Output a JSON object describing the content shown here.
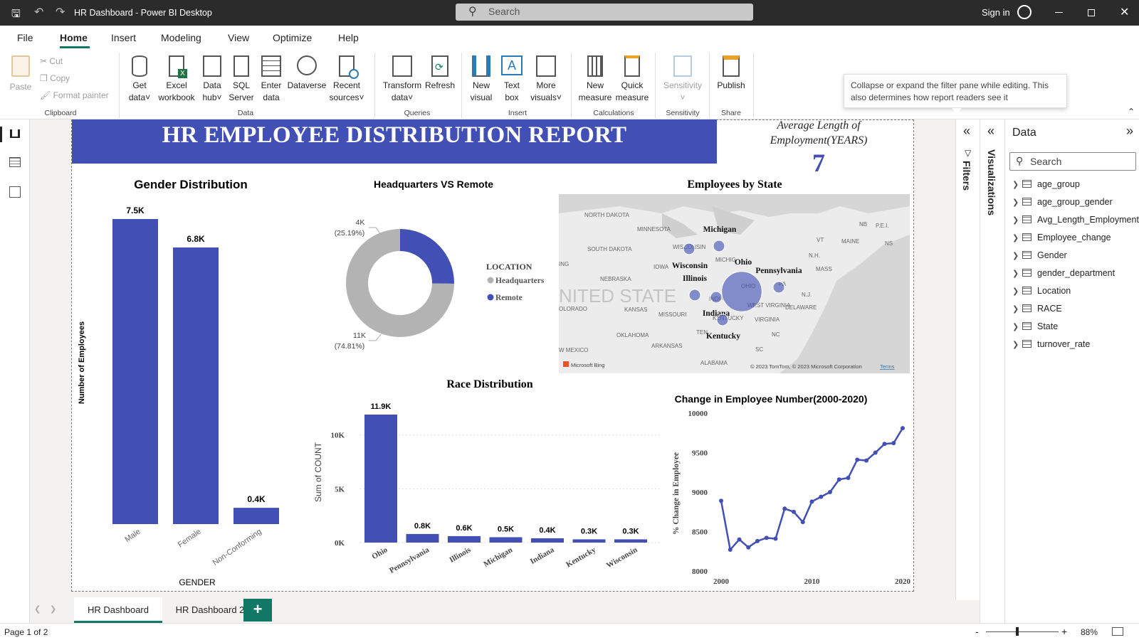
{
  "window": {
    "title": "HR Dashboard - Power BI Desktop",
    "search_placeholder": "Search",
    "signin": "Sign in"
  },
  "menu": [
    "File",
    "Home",
    "Insert",
    "Modeling",
    "View",
    "Optimize",
    "Help"
  ],
  "ribbon": {
    "clipboard": {
      "paste": "Paste",
      "cut": "Cut",
      "copy": "Copy",
      "format_painter": "Format painter",
      "group": "Clipboard"
    },
    "data": {
      "get_data": [
        "Get",
        "data"
      ],
      "excel": [
        "Excel",
        "workbook"
      ],
      "hub": [
        "Data",
        "hub"
      ],
      "sql": [
        "SQL",
        "Server"
      ],
      "enter": [
        "Enter",
        "data"
      ],
      "dataverse": "Dataverse",
      "recent": [
        "Recent",
        "sources"
      ],
      "group": "Data"
    },
    "queries": {
      "transform": [
        "Transform",
        "data"
      ],
      "refresh": "Refresh",
      "group": "Queries"
    },
    "insert": {
      "new_visual": [
        "New",
        "visual"
      ],
      "text_box": [
        "Text",
        "box"
      ],
      "more_visuals": [
        "More",
        "visuals"
      ],
      "group": "Insert"
    },
    "calculations": {
      "new_measure": [
        "New",
        "measure"
      ],
      "quick_measure": [
        "Quick",
        "measure"
      ],
      "group": "Calculations"
    },
    "sensitivity": {
      "label": "Sensitivity",
      "group": "Sensitivity"
    },
    "share": {
      "publish": "Publish",
      "group": "Share"
    }
  },
  "tooltip": "Collapse or expand the filter pane while editing. This also determines how report readers see it",
  "report": {
    "title": "HR EMPLOYEE DISTRIBUTION REPORT",
    "avg_card": {
      "label_line1": "Average Length of",
      "label_line2": "Employment(YEARS)",
      "value": "7"
    }
  },
  "colors": {
    "primary": "#4250b5",
    "gray": "#b3b3b3",
    "banner": "#4250b5"
  },
  "chart_data": [
    {
      "type": "bar",
      "title": "Gender Distribution",
      "xlabel": "GENDER",
      "ylabel": "Number of Employees",
      "categories": [
        "Male",
        "Female",
        "Non-Conforming"
      ],
      "values": [
        7.5,
        6.8,
        0.4
      ],
      "data_labels": [
        "7.5K",
        "6.8K",
        "0.4K"
      ],
      "ylim": [
        0,
        7.5
      ]
    },
    {
      "type": "pie",
      "title": "Headquarters VS Remote",
      "legend_title": "LOCATION",
      "legend_position": "right",
      "categories": [
        "Headquarters",
        "Remote"
      ],
      "values": [
        74.81,
        25.19
      ],
      "data_labels": [
        [
          "11K",
          "(74.81%)"
        ],
        [
          "4K",
          "(25.19%)"
        ]
      ]
    },
    {
      "type": "scatter",
      "title": "Employees by State",
      "map_labels": {
        "states": [
          "NORTH DAKOTA",
          "MINNESOTA",
          "SOUTH DAKOTA",
          "IOWA",
          "NEBRASKA",
          "KANSAS",
          "MISSOURI",
          "OKLAHOMA",
          "ARKANSAS",
          "ALABAMA",
          "VIRGINIA",
          "DELAWARE",
          "MAINE",
          "NC",
          "SC",
          "NB",
          "NS",
          "P.E.I.",
          "N.H.",
          "MASS",
          "W MEXICO",
          "OLORADO",
          "ING",
          "WISCONSIN",
          "MICHIG",
          "OHIO",
          "INDIA",
          "PA",
          "N.J.",
          "WEST VIRGINIA",
          "KENTUCKY",
          "TEN",
          "VT"
        ],
        "country": "NITED STATE",
        "bing": "Microsoft Bing",
        "copyright": "© 2023 TomTom, © 2023 Microsoft Corporation",
        "terms": "Terms"
      },
      "points": [
        {
          "name": "Michigan",
          "value": 0.5
        },
        {
          "name": "Wisconsin",
          "value": 0.3
        },
        {
          "name": "Illinois",
          "value": 0.6
        },
        {
          "name": "Ohio",
          "value": 11.9
        },
        {
          "name": "Pennsylvania",
          "value": 0.8
        },
        {
          "name": "Indiana",
          "value": 0.4
        },
        {
          "name": "Kentucky",
          "value": 0.3
        }
      ]
    },
    {
      "type": "bar",
      "title": "Race Distribution",
      "ylabel": "Sum of COUNT",
      "categories": [
        "Ohio",
        "Pennsylvania",
        "Illinois",
        "Michigan",
        "Indiana",
        "Kentucky",
        "Wisconsin"
      ],
      "values": [
        11.9,
        0.8,
        0.6,
        0.5,
        0.4,
        0.3,
        0.3
      ],
      "data_labels": [
        "11.9K",
        "0.8K",
        "0.6K",
        "0.5K",
        "0.4K",
        "0.3K",
        "0.3K"
      ],
      "yticks": [
        "0K",
        "5K",
        "10K"
      ],
      "ytick_values": [
        0,
        5,
        10
      ],
      "ylim": [
        0,
        11.9
      ],
      "grid": true
    },
    {
      "type": "line",
      "title": "Change in Employee Number(2000-2020)",
      "ylabel": "% Change in Employee",
      "x": [
        2000,
        2001,
        2002,
        2003,
        2004,
        2005,
        2006,
        2007,
        2008,
        2009,
        2010,
        2011,
        2012,
        2013,
        2014,
        2015,
        2016,
        2017,
        2018,
        2019,
        2020
      ],
      "y": [
        8890,
        8270,
        8400,
        8300,
        8380,
        8420,
        8410,
        8790,
        8750,
        8620,
        8880,
        8940,
        9000,
        9160,
        9180,
        9410,
        9400,
        9500,
        9610,
        9620,
        9810
      ],
      "ylim": [
        8000,
        10000
      ],
      "xlim": [
        2000,
        2020
      ],
      "yticks": [
        "8000",
        "8500",
        "9000",
        "9500",
        "10000"
      ],
      "xticks": [
        "2000",
        "2010",
        "2020"
      ]
    }
  ],
  "panes": {
    "filters": "Filters",
    "visualizations": "Visualizations",
    "data": {
      "title": "Data",
      "search_placeholder": "Search",
      "fields": [
        "age_group",
        "age_group_gender",
        "Avg_Length_Employment",
        "Employee_change",
        "Gender",
        "gender_department",
        "Location",
        "RACE",
        "State",
        "turnover_rate"
      ]
    }
  },
  "tabs": [
    "HR Dashboard",
    "HR Dashboard 2"
  ],
  "add_tab": "+",
  "status": {
    "page": "Page 1 of 2",
    "zoom": "88%",
    "minus": "-",
    "plus": "+"
  }
}
